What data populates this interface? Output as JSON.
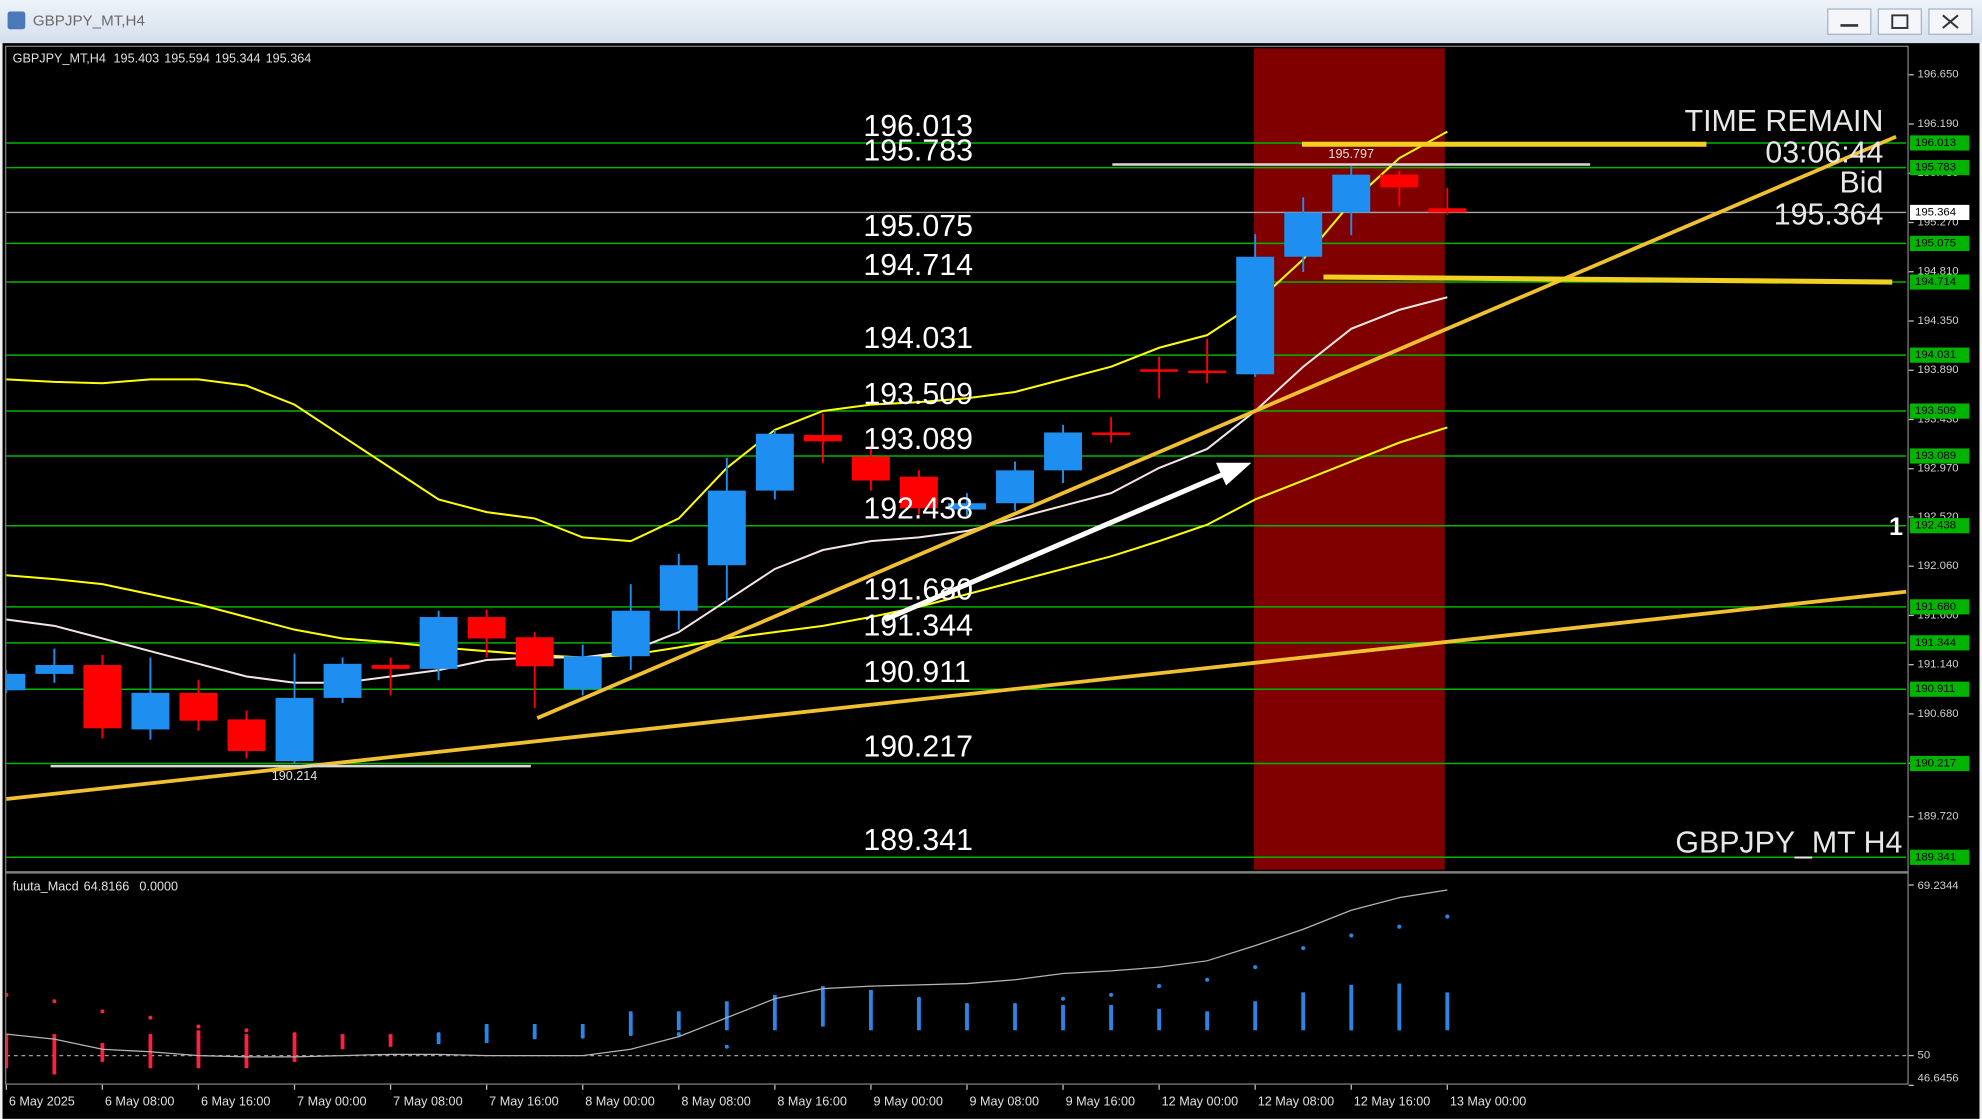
{
  "chart_data": [
    {
      "type": "candlestick",
      "symbol": "GBPJPY_MT,H4",
      "categories": [
        "6 May 2025",
        null,
        "6 May 08:00",
        null,
        "6 May 16:00",
        null,
        "7 May 00:00",
        null,
        "7 May 08:00",
        null,
        "7 May 16:00",
        null,
        "8 May 00:00",
        null,
        "8 May 08:00",
        null,
        "8 May 16:00",
        null,
        "9 May 00:00",
        null,
        "9 May 08:00",
        null,
        "9 May 16:00",
        null,
        "12 May 00:00",
        null,
        "12 May 08:00",
        null,
        "12 May 16:00",
        null,
        "13 May 00:00"
      ],
      "open": [
        190.901,
        191.054,
        191.137,
        190.535,
        190.877,
        190.629,
        190.239,
        190.83,
        191.137,
        191.101,
        191.585,
        191.396,
        190.912,
        191.219,
        191.644,
        192.069,
        192.766,
        193.285,
        193.085,
        192.896,
        192.589,
        192.648,
        192.955,
        193.309,
        193.899,
        193.887,
        193.852,
        194.95,
        195.364,
        195.717,
        195.403
      ],
      "high": [
        191.089,
        191.29,
        191.231,
        191.207,
        190.995,
        190.712,
        191.243,
        191.207,
        191.207,
        191.644,
        191.656,
        191.444,
        191.326,
        191.892,
        192.176,
        193.073,
        193.333,
        193.486,
        193.191,
        192.955,
        192.742,
        193.037,
        193.38,
        193.451,
        194.017,
        194.183,
        195.162,
        195.505,
        195.797,
        195.753,
        195.594
      ],
      "low": [
        190.877,
        190.971,
        190.452,
        190.44,
        190.523,
        190.263,
        190.214,
        190.782,
        190.853,
        190.995,
        191.207,
        190.735,
        190.853,
        191.089,
        191.467,
        191.727,
        192.683,
        193.026,
        192.766,
        192.542,
        192.53,
        192.577,
        192.837,
        193.214,
        193.628,
        193.769,
        193.828,
        194.808,
        195.151,
        195.422,
        195.344
      ],
      "close": [
        191.054,
        191.137,
        190.546,
        190.877,
        190.617,
        190.334,
        190.83,
        191.148,
        191.101,
        191.585,
        191.385,
        191.125,
        191.219,
        191.644,
        192.069,
        192.766,
        193.297,
        193.226,
        192.86,
        192.601,
        192.648,
        192.955,
        193.309,
        193.285,
        193.876,
        193.864,
        194.95,
        195.364,
        195.717,
        195.599,
        195.364
      ],
      "up_color": "#1e8ff0",
      "down_color": "#ff0000",
      "ylim": [
        189.224,
        196.898
      ],
      "yticks": [
        {
          "value": 196.65,
          "label": "196.650"
        },
        {
          "value": 196.19,
          "label": "196.190"
        },
        {
          "value": 195.73,
          "label": "195.730"
        },
        {
          "value": 195.27,
          "label": "195.270"
        },
        {
          "value": 194.81,
          "label": "194.810"
        },
        {
          "value": 194.35,
          "label": "194.350"
        },
        {
          "value": 193.89,
          "label": "193.890"
        },
        {
          "value": 193.43,
          "label": "193.430"
        },
        {
          "value": 192.97,
          "label": "192.970"
        },
        {
          "value": 192.52,
          "label": "192.520"
        },
        {
          "value": 192.06,
          "label": "192.060"
        },
        {
          "value": 191.6,
          "label": "191.600"
        },
        {
          "value": 191.14,
          "label": "191.140"
        },
        {
          "value": 190.68,
          "label": "190.680"
        },
        {
          "value": 190.22,
          "label": "190.220"
        },
        {
          "value": 189.72,
          "label": "189.720"
        }
      ],
      "levels": [
        196.013,
        195.783,
        195.075,
        194.714,
        194.031,
        193.509,
        193.089,
        192.438,
        {
          "value": 191.68,
          "label": "191.680"
        },
        191.344,
        190.911,
        190.217,
        189.341
      ],
      "level_color": "#00b400",
      "overlays": [
        {
          "color": "#ffff00",
          "values": [
            193.805,
            193.781,
            193.769,
            193.805,
            193.805,
            193.746,
            193.569,
            193.273,
            192.978,
            192.683,
            192.565,
            192.506,
            192.329,
            192.294,
            192.506,
            192.978,
            193.333,
            193.51,
            193.569,
            193.592,
            193.628,
            193.687,
            193.805,
            193.923,
            194.1,
            194.218,
            194.513,
            194.926,
            195.458,
            195.871,
            196.119
          ]
        },
        {
          "color": "#ffff00",
          "values": [
            191.975,
            191.939,
            191.892,
            191.798,
            191.703,
            191.585,
            191.467,
            191.385,
            191.349,
            191.302,
            191.266,
            191.231,
            191.207,
            191.231,
            191.302,
            191.385,
            191.444,
            191.503,
            191.585,
            191.68,
            191.798,
            191.916,
            192.034,
            192.152,
            192.294,
            192.447,
            192.683,
            192.86,
            193.037,
            193.214,
            193.356
          ]
        },
        {
          "color": "#f4e4e4",
          "values": [
            191.562,
            191.503,
            191.385,
            191.266,
            191.148,
            191.03,
            190.971,
            190.971,
            191.03,
            191.089,
            191.184,
            191.207,
            191.207,
            191.266,
            191.444,
            191.739,
            192.034,
            192.211,
            192.294,
            192.329,
            192.388,
            192.506,
            192.624,
            192.742,
            192.978,
            193.155,
            193.51,
            193.923,
            194.277,
            194.454,
            194.572
          ]
        }
      ],
      "time_remain_label": "TIME REMAIN",
      "time_remain": "03:06:44",
      "bid_label": "Bid",
      "watermark": "GBPJPY_MT H4",
      "marker": "1"
    },
    {
      "type": "macd",
      "title": "fuuta_Macd",
      "readouts": [
        64.8166,
        {
          "value": 0,
          "label": "0.0000"
        }
      ],
      "ylim": [
        46.6456,
        69.2344
      ],
      "yticks": [
        46.6456,
        50,
        69.2344
      ],
      "series": [
        {
          "color": "#ff2040",
          "high": [
            52.422,
            52.422,
            51.425,
            52.422,
            52.849,
            52.422,
            52.422,
            52.422,
            52.422,
            null,
            null,
            null,
            null,
            null,
            null,
            null,
            null,
            null,
            null,
            null,
            null,
            null,
            null,
            null,
            null,
            null,
            null,
            null,
            null,
            null,
            null
          ],
          "low": [
            48.575,
            47.863,
            49.288,
            48.575,
            48.575,
            48.575,
            49.288,
            50.712,
            50.997,
            null,
            null,
            null,
            null,
            null,
            null,
            null,
            null,
            null,
            null,
            null,
            null,
            null,
            null,
            null,
            null,
            null,
            null,
            null,
            null,
            null,
            null
          ],
          "dots": [
            56.839,
            56.126,
            54.986,
            54.274,
            53.277,
            52.849,
            52.422,
            52.137,
            52.137,
            null,
            null,
            null,
            null,
            null,
            null,
            null,
            null,
            null,
            null,
            null,
            null,
            null,
            null,
            null,
            null,
            null,
            null,
            null,
            null,
            null,
            null
          ]
        },
        {
          "color": "#2a86e6",
          "high": [
            null,
            null,
            null,
            null,
            null,
            null,
            null,
            null,
            null,
            52.422,
            53.562,
            53.562,
            53.562,
            54.986,
            54.986,
            56.126,
            56.839,
            57.836,
            57.408,
            56.411,
            55.699,
            55.556,
            55.699,
            55.699,
            55.271,
            54.986,
            56.126,
            57.124,
            57.978,
            58.121,
            57.124
          ],
          "low": [
            null,
            null,
            null,
            null,
            null,
            null,
            null,
            null,
            null,
            51.282,
            51.425,
            51.852,
            52.137,
            52.422,
            52.849,
            52.849,
            52.849,
            53.277,
            52.849,
            52.849,
            52.849,
            52.849,
            52.849,
            52.849,
            52.849,
            52.849,
            52.849,
            52.849,
            52.849,
            52.849,
            52.849
          ],
          "dots": [
            null,
            null,
            null,
            null,
            null,
            null,
            null,
            null,
            null,
            52.422,
            52.849,
            52.422,
            52.137,
            52.422,
            52.422,
            50.997,
            54.274,
            56.411,
            57.124,
            56.411,
            55.699,
            55.699,
            56.411,
            56.839,
            57.836,
            58.548,
            59.973,
            62.11,
            63.535,
            64.532,
            65.672
          ]
        }
      ],
      "line": {
        "color": "#b4b4b4",
        "values": [
          52.422,
          51.852,
          50.712,
          50.427,
          50.0,
          49.858,
          49.858,
          50.0,
          50.142,
          50.142,
          50.0,
          50.0,
          50.0,
          50.712,
          52.137,
          54.274,
          56.411,
          57.551,
          57.836,
          57.978,
          58.121,
          58.548,
          59.261,
          59.545,
          59.973,
          60.685,
          62.395,
          64.247,
          66.384,
          67.808,
          68.663
        ]
      }
    }
  ]
}
